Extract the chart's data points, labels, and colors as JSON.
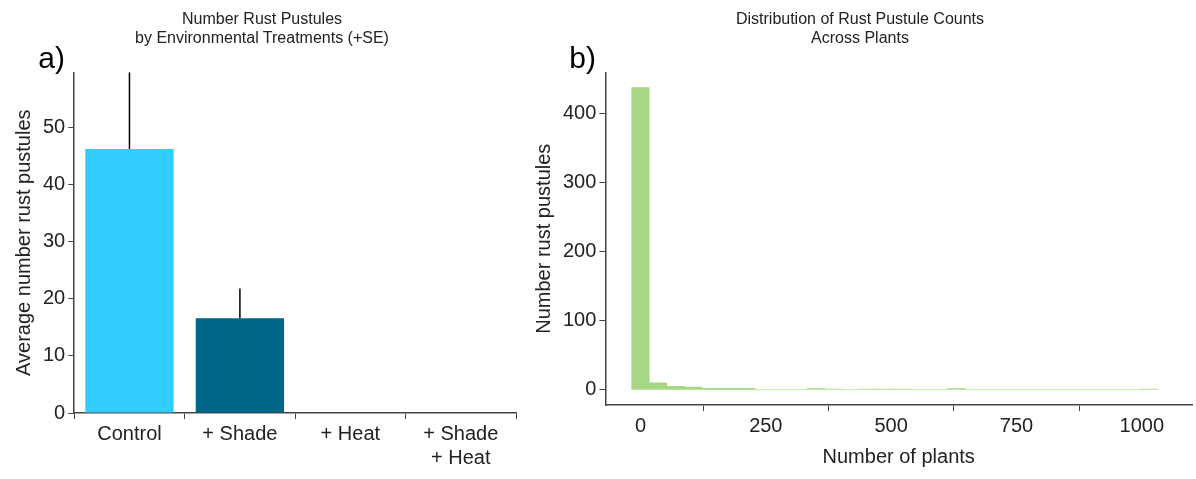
{
  "chart_data": [
    {
      "type": "bar",
      "title": "Number Rust Pustules\nby Environmental Treatments (+SE)",
      "ylabel": "Average number rust pustules",
      "categories": [
        "Control",
        "+ Shade",
        "+ Heat",
        "+ Shade + Heat"
      ],
      "values": [
        46.2,
        16.6,
        0,
        0
      ],
      "colors": [
        "#33ccff",
        "#006688",
        "#33ccff",
        "#006688"
      ],
      "errors": [
        [
          46.2,
          59.6
        ],
        [
          16.6,
          21.8
        ],
        null,
        null
      ],
      "ylim": [
        0,
        59.6
      ],
      "yticks": [
        0,
        10,
        20,
        30,
        40,
        50
      ],
      "annotations": [
        "a)"
      ]
    },
    {
      "type": "histogram",
      "title": "Distribution of Rust Pustule Counts\nAcross Plants",
      "xlabel": "Number of plants",
      "ylabel": "Number rust pustules",
      "color": "#a6d785",
      "bins": [
        -17.5,
        17.5,
        52.5,
        87.5,
        122.5,
        157.5,
        192.5,
        227.5,
        262.5,
        297.5,
        332.5,
        367.5,
        402.5,
        437.5,
        472.5,
        507.5,
        542.5,
        577.5,
        612.5,
        647.5,
        682.5,
        717.5,
        752.5,
        787.5,
        822.5,
        857.5,
        892.5,
        927.5,
        962.5,
        997.5,
        1032.5
      ],
      "values": [
        438,
        10,
        5,
        4,
        2,
        2,
        2,
        0,
        0,
        0,
        2,
        1,
        0,
        1,
        1,
        1,
        0,
        0,
        2,
        0,
        0,
        0,
        0,
        0,
        0,
        0,
        0,
        0,
        0,
        1
      ],
      "xlim": [
        -70,
        1100
      ],
      "xticks": [
        0,
        250,
        500,
        750,
        1000
      ],
      "ylim": [
        -22,
        460
      ],
      "yticks": [
        0,
        100,
        200,
        300,
        400
      ],
      "annotations": [
        "b)"
      ]
    }
  ]
}
